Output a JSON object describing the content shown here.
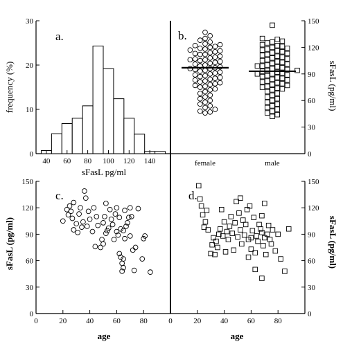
{
  "chart_data": [
    {
      "panel": "a.",
      "type": "bar",
      "xlabel": "sFasL pg/ml",
      "ylabel": "frequency (%)",
      "xlim": [
        30,
        160
      ],
      "ylim": [
        0,
        30
      ],
      "xticks": [
        40,
        60,
        80,
        100,
        120,
        140
      ],
      "yticks": [
        0,
        10,
        20,
        30
      ],
      "bin_width": 10,
      "bins": [
        {
          "center": 40,
          "value": 0.7
        },
        {
          "center": 50,
          "value": 4.5
        },
        {
          "center": 60,
          "value": 6.8
        },
        {
          "center": 70,
          "value": 8.0
        },
        {
          "center": 80,
          "value": 10.8
        },
        {
          "center": 90,
          "value": 24.3
        },
        {
          "center": 100,
          "value": 19.2
        },
        {
          "center": 110,
          "value": 12.4
        },
        {
          "center": 120,
          "value": 8.0
        },
        {
          "center": 130,
          "value": 4.4
        },
        {
          "center": 140,
          "value": 0.5
        },
        {
          "center": 150,
          "value": 0.5
        }
      ]
    },
    {
      "panel": "b.",
      "type": "scatter",
      "ylabel": "sFasL (pg/ml)",
      "ylim": [
        0,
        150
      ],
      "yticks": [
        0,
        30,
        60,
        90,
        120,
        150
      ],
      "categories": [
        "female",
        "male"
      ],
      "series": [
        {
          "category": "female",
          "marker": "circle",
          "mean": 97,
          "values": [
            137,
            133,
            130,
            128,
            126,
            124,
            123,
            122,
            121,
            120,
            119,
            118,
            117,
            116,
            115,
            114,
            113,
            112,
            112,
            110,
            109,
            108,
            107,
            106,
            106,
            105,
            104,
            103,
            102,
            101,
            100,
            99,
            98,
            97,
            96,
            96,
            95,
            94,
            93,
            92,
            91,
            90,
            89,
            88,
            87,
            86,
            85,
            84,
            83,
            82,
            81,
            80,
            79,
            78,
            77,
            76,
            75,
            73,
            72,
            70,
            68,
            66,
            64,
            62,
            60,
            58,
            56,
            54,
            52,
            50,
            48,
            47,
            46
          ]
        },
        {
          "category": "male",
          "marker": "square",
          "mean": 93,
          "values": [
            145,
            130,
            129,
            127,
            126,
            125,
            123,
            122,
            121,
            120,
            119,
            118,
            117,
            116,
            115,
            114,
            113,
            112,
            111,
            110,
            109,
            108,
            107,
            106,
            105,
            104,
            103,
            102,
            101,
            100,
            99,
            99,
            98,
            97,
            96,
            95,
            94,
            94,
            93,
            92,
            91,
            90,
            90,
            89,
            88,
            87,
            86,
            85,
            84,
            83,
            82,
            81,
            80,
            79,
            78,
            77,
            76,
            75,
            74,
            73,
            72,
            70,
            68,
            66,
            64,
            62,
            60,
            58,
            56,
            54,
            52,
            50,
            48,
            46,
            44,
            42
          ]
        }
      ]
    },
    {
      "panel": "c.",
      "type": "scatter",
      "marker": "circle",
      "xlabel": "age",
      "ylabel": "sFasL (pg/ml)",
      "xlim": [
        0,
        100
      ],
      "ylim": [
        0,
        150
      ],
      "xticks": [
        0,
        20,
        40,
        60,
        80
      ],
      "yticks": [
        0,
        30,
        60,
        90,
        120,
        150
      ],
      "points": [
        [
          20,
          105
        ],
        [
          23,
          118
        ],
        [
          24,
          112
        ],
        [
          25,
          122
        ],
        [
          26,
          116
        ],
        [
          27,
          108
        ],
        [
          28,
          95
        ],
        [
          28,
          126
        ],
        [
          30,
          102
        ],
        [
          31,
          92
        ],
        [
          32,
          113
        ],
        [
          33,
          120
        ],
        [
          34,
          98
        ],
        [
          35,
          104
        ],
        [
          36,
          139
        ],
        [
          37,
          131
        ],
        [
          38,
          99
        ],
        [
          39,
          116
        ],
        [
          40,
          107
        ],
        [
          42,
          93
        ],
        [
          43,
          120
        ],
        [
          44,
          76
        ],
        [
          45,
          110
        ],
        [
          46,
          100
        ],
        [
          48,
          75
        ],
        [
          49,
          84
        ],
        [
          50,
          79
        ],
        [
          50,
          103
        ],
        [
          51,
          110
        ],
        [
          52,
          91
        ],
        [
          52,
          125
        ],
        [
          53,
          94
        ],
        [
          54,
          97
        ],
        [
          55,
          118
        ],
        [
          56,
          107
        ],
        [
          57,
          101
        ],
        [
          58,
          84
        ],
        [
          59,
          113
        ],
        [
          60,
          93
        ],
        [
          60,
          120
        ],
        [
          61,
          89
        ],
        [
          62,
          68
        ],
        [
          62,
          109
        ],
        [
          63,
          64
        ],
        [
          63,
          96
        ],
        [
          64,
          57
        ],
        [
          64,
          48
        ],
        [
          65,
          94
        ],
        [
          65,
          52
        ],
        [
          65,
          62
        ],
        [
          66,
          85
        ],
        [
          66,
          117
        ],
        [
          67,
          99
        ],
        [
          68,
          103
        ],
        [
          69,
          109
        ],
        [
          70,
          88
        ],
        [
          70,
          120
        ],
        [
          71,
          110
        ],
        [
          72,
          72
        ],
        [
          73,
          49
        ],
        [
          74,
          75
        ],
        [
          76,
          119
        ],
        [
          79,
          62
        ],
        [
          80,
          85
        ],
        [
          81,
          88
        ],
        [
          85,
          47
        ]
      ]
    },
    {
      "panel": "d.",
      "type": "scatter",
      "marker": "square",
      "xlabel": "age",
      "ylabel": "sFasL (pg/ml)",
      "xlim": [
        0,
        100
      ],
      "ylim": [
        0,
        150
      ],
      "xticks": [
        0,
        20,
        40,
        60,
        80
      ],
      "yticks": [
        0,
        30,
        60,
        90,
        120,
        150
      ],
      "points": [
        [
          21,
          145
        ],
        [
          22,
          130
        ],
        [
          23,
          122
        ],
        [
          24,
          112
        ],
        [
          25,
          98
        ],
        [
          26,
          104
        ],
        [
          27,
          117
        ],
        [
          28,
          95
        ],
        [
          30,
          68
        ],
        [
          31,
          78
        ],
        [
          32,
          86
        ],
        [
          33,
          67
        ],
        [
          34,
          82
        ],
        [
          35,
          75
        ],
        [
          36,
          90
        ],
        [
          37,
          96
        ],
        [
          38,
          118
        ],
        [
          39,
          88
        ],
        [
          40,
          104
        ],
        [
          41,
          70
        ],
        [
          42,
          93
        ],
        [
          43,
          84
        ],
        [
          44,
          99
        ],
        [
          45,
          110
        ],
        [
          46,
          91
        ],
        [
          47,
          72
        ],
        [
          48,
          103
        ],
        [
          49,
          127
        ],
        [
          50,
          87
        ],
        [
          51,
          114
        ],
        [
          52,
          95
        ],
        [
          52,
          131
        ],
        [
          53,
          79
        ],
        [
          54,
          106
        ],
        [
          55,
          89
        ],
        [
          56,
          101
        ],
        [
          57,
          118
        ],
        [
          58,
          84
        ],
        [
          58,
          64
        ],
        [
          59,
          122
        ],
        [
          60,
          86
        ],
        [
          60,
          73
        ],
        [
          61,
          94
        ],
        [
          62,
          109
        ],
        [
          63,
          69
        ],
        [
          63,
          50
        ],
        [
          64,
          88
        ],
        [
          65,
          82
        ],
        [
          66,
          101
        ],
        [
          67,
          96
        ],
        [
          68,
          92
        ],
        [
          68,
          111
        ],
        [
          69,
          77
        ],
        [
          70,
          86
        ],
        [
          70,
          125
        ],
        [
          71,
          67
        ],
        [
          72,
          90
        ],
        [
          73,
          100
        ],
        [
          74,
          84
        ],
        [
          75,
          79
        ],
        [
          76,
          95
        ],
        [
          78,
          71
        ],
        [
          80,
          90
        ],
        [
          82,
          62
        ],
        [
          85,
          48
        ],
        [
          88,
          96
        ],
        [
          68,
          40
        ]
      ]
    }
  ]
}
